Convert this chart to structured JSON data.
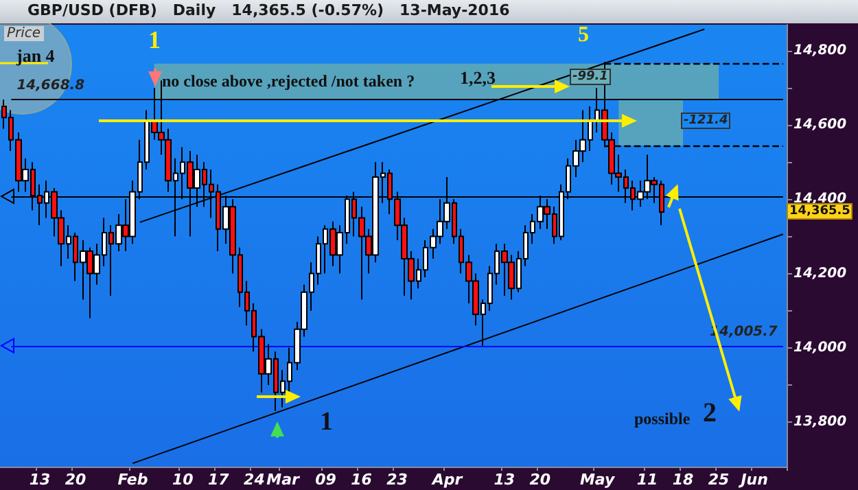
{
  "chart_data": {
    "type": "candlestick",
    "title": "GBP/USD (DFB)   Daily   14,365.5 (-0.57%)   13-May-2016",
    "categories": [
      null,
      null,
      null,
      null,
      null,
      "13",
      null,
      null,
      null,
      null,
      "20",
      null,
      null,
      null,
      null,
      null,
      null,
      null,
      "Feb",
      null,
      null,
      null,
      null,
      null,
      null,
      "10",
      null,
      null,
      null,
      null,
      "17",
      null,
      null,
      null,
      null,
      "24",
      null,
      null,
      null,
      "Mar",
      null,
      null,
      null,
      null,
      null,
      "09",
      null,
      null,
      null,
      null,
      "16",
      null,
      null,
      null,
      null,
      "23",
      null,
      null,
      null,
      null,
      null,
      null,
      "Apr",
      null,
      null,
      null,
      null,
      null,
      null,
      null,
      "13",
      null,
      null,
      null,
      null,
      "20",
      null,
      null,
      null,
      null,
      null,
      null,
      null,
      "May",
      null,
      null,
      null,
      null,
      null,
      null,
      "11",
      null,
      null,
      null,
      null,
      "18",
      null,
      null,
      null,
      null,
      "25",
      null,
      null,
      null,
      null,
      "Jun",
      null,
      null,
      null,
      null
    ],
    "ohlc": [
      [
        14650,
        14668.8,
        14590,
        14620
      ],
      [
        14620,
        14640,
        14530,
        14560
      ],
      [
        14560,
        14580,
        14420,
        14450
      ],
      [
        14450,
        14510,
        14420,
        14480
      ],
      [
        14480,
        14500,
        14370,
        14410
      ],
      [
        14410,
        14440,
        14330,
        14390
      ],
      [
        14390,
        14450,
        14350,
        14420
      ],
      [
        14420,
        14430,
        14300,
        14350
      ],
      [
        14350,
        14370,
        14220,
        14280
      ],
      [
        14280,
        14330,
        14240,
        14300
      ],
      [
        14300,
        14310,
        14180,
        14230
      ],
      [
        14230,
        14290,
        14130,
        14260
      ],
      [
        14260,
        14270,
        14080,
        14200
      ],
      [
        14200,
        14280,
        14170,
        14250
      ],
      [
        14250,
        14350,
        14220,
        14310
      ],
      [
        14310,
        14330,
        14140,
        14280
      ],
      [
        14280,
        14360,
        14260,
        14330
      ],
      [
        14330,
        14400,
        14260,
        14300
      ],
      [
        14300,
        14450,
        14280,
        14420
      ],
      [
        14420,
        14560,
        14400,
        14500
      ],
      [
        14500,
        14640,
        14480,
        14610
      ],
      [
        14610,
        14700,
        14560,
        14580
      ],
      [
        14580,
        14720,
        14520,
        14560
      ],
      [
        14560,
        14590,
        14420,
        14450
      ],
      [
        14450,
        14510,
        14300,
        14470
      ],
      [
        14470,
        14540,
        14400,
        14500
      ],
      [
        14500,
        14530,
        14300,
        14430
      ],
      [
        14430,
        14520,
        14380,
        14480
      ],
      [
        14480,
        14500,
        14380,
        14440
      ],
      [
        14440,
        14480,
        14350,
        14420
      ],
      [
        14420,
        14440,
        14260,
        14320
      ],
      [
        14320,
        14410,
        14280,
        14380
      ],
      [
        14380,
        14400,
        14200,
        14250
      ],
      [
        14250,
        14270,
        14110,
        14150
      ],
      [
        14150,
        14180,
        14060,
        14100
      ],
      [
        14100,
        14120,
        13990,
        14030
      ],
      [
        14030,
        14050,
        13880,
        13930
      ],
      [
        13930,
        14010,
        13900,
        13970
      ],
      [
        13970,
        13990,
        13830,
        13880
      ],
      [
        13880,
        13940,
        13840,
        13910
      ],
      [
        13910,
        14000,
        13880,
        13960
      ],
      [
        13960,
        14070,
        13940,
        14050
      ],
      [
        14050,
        14170,
        14030,
        14150
      ],
      [
        14150,
        14230,
        14100,
        14200
      ],
      [
        14200,
        14300,
        14170,
        14280
      ],
      [
        14280,
        14330,
        14200,
        14320
      ],
      [
        14320,
        14340,
        14220,
        14250
      ],
      [
        14250,
        14330,
        14200,
        14310
      ],
      [
        14310,
        14410,
        14280,
        14400
      ],
      [
        14400,
        14420,
        14300,
        14350
      ],
      [
        14350,
        14380,
        14130,
        14300
      ],
      [
        14300,
        14320,
        14200,
        14250
      ],
      [
        14250,
        14500,
        14230,
        14460
      ],
      [
        14460,
        14500,
        14390,
        14470
      ],
      [
        14470,
        14480,
        14360,
        14400
      ],
      [
        14400,
        14420,
        14290,
        14330
      ],
      [
        14330,
        14350,
        14140,
        14240
      ],
      [
        14240,
        14260,
        14130,
        14180
      ],
      [
        14180,
        14240,
        14160,
        14210
      ],
      [
        14210,
        14290,
        14190,
        14270
      ],
      [
        14270,
        14320,
        14240,
        14300
      ],
      [
        14300,
        14400,
        14280,
        14340
      ],
      [
        14340,
        14460,
        14320,
        14390
      ],
      [
        14390,
        14400,
        14280,
        14300
      ],
      [
        14300,
        14320,
        14200,
        14230
      ],
      [
        14230,
        14250,
        14120,
        14180
      ],
      [
        14180,
        14200,
        14060,
        14090
      ],
      [
        14090,
        14130,
        14005.7,
        14120
      ],
      [
        14120,
        14220,
        14100,
        14200
      ],
      [
        14200,
        14280,
        14170,
        14260
      ],
      [
        14260,
        14280,
        14140,
        14230
      ],
      [
        14230,
        14250,
        14130,
        14160
      ],
      [
        14160,
        14260,
        14150,
        14240
      ],
      [
        14240,
        14330,
        14220,
        14310
      ],
      [
        14310,
        14360,
        14280,
        14340
      ],
      [
        14340,
        14410,
        14320,
        14380
      ],
      [
        14380,
        14400,
        14320,
        14360
      ],
      [
        14360,
        14380,
        14280,
        14300
      ],
      [
        14300,
        14440,
        14290,
        14420
      ],
      [
        14420,
        14510,
        14400,
        14490
      ],
      [
        14490,
        14560,
        14460,
        14530
      ],
      [
        14530,
        14640,
        14500,
        14560
      ],
      [
        14560,
        14650,
        14530,
        14610
      ],
      [
        14610,
        14700,
        14580,
        14640
      ],
      [
        14640,
        14770,
        14540,
        14560
      ],
      [
        14560,
        14580,
        14440,
        14470
      ],
      [
        14470,
        14520,
        14420,
        14460
      ],
      [
        14460,
        14480,
        14390,
        14430
      ],
      [
        14430,
        14450,
        14370,
        14400
      ],
      [
        14400,
        14450,
        14380,
        14420
      ],
      [
        14420,
        14520,
        14400,
        14450
      ],
      [
        14450,
        14460,
        14390,
        14440
      ],
      [
        14440,
        14450,
        14330,
        14365.5
      ],
      null,
      null,
      null,
      null,
      null,
      null,
      null,
      null,
      null,
      null,
      null,
      null,
      null,
      null,
      null,
      null,
      null
    ],
    "series": [
      {
        "type": "line",
        "color": "#000000",
        "values": [
          null,
          null,
          null,
          null,
          null,
          null,
          null,
          null,
          null,
          null,
          null,
          null,
          null,
          null,
          null,
          null,
          null,
          null,
          null,
          14338,
          null,
          null,
          null,
          null,
          null,
          null,
          null,
          null,
          null,
          null,
          null,
          null,
          null,
          null,
          null,
          null,
          null,
          null,
          null,
          null,
          null,
          null,
          null,
          null,
          null,
          null,
          null,
          null,
          null,
          null,
          null,
          null,
          null,
          null,
          null,
          null,
          null,
          null,
          null,
          null,
          null,
          null,
          null,
          null,
          null,
          null,
          null,
          null,
          null,
          null,
          null,
          null,
          null,
          null,
          null,
          null,
          null,
          null,
          null,
          null,
          null,
          null,
          null,
          null,
          null,
          null,
          null,
          null,
          null,
          null,
          null,
          null,
          null,
          null,
          null,
          null,
          null,
          null,
          14858,
          null,
          null,
          null,
          null,
          null,
          null,
          null,
          null,
          null,
          null,
          null
        ]
      },
      {
        "type": "line",
        "color": "#000000",
        "values": [
          null,
          null,
          null,
          null,
          null,
          null,
          null,
          null,
          null,
          null,
          null,
          null,
          null,
          null,
          null,
          null,
          null,
          null,
          13689,
          null,
          null,
          null,
          null,
          null,
          null,
          null,
          null,
          null,
          null,
          null,
          null,
          null,
          null,
          null,
          null,
          null,
          null,
          null,
          null,
          null,
          null,
          null,
          null,
          null,
          null,
          null,
          null,
          null,
          null,
          null,
          null,
          null,
          null,
          null,
          null,
          null,
          null,
          null,
          null,
          null,
          null,
          null,
          null,
          null,
          null,
          null,
          null,
          null,
          null,
          null,
          null,
          null,
          null,
          null,
          null,
          null,
          null,
          null,
          null,
          null,
          null,
          null,
          null,
          null,
          null,
          null,
          null,
          null,
          null,
          null,
          null,
          null,
          null,
          null,
          null,
          null,
          null,
          null,
          null,
          null,
          null,
          null,
          null,
          null,
          null,
          null,
          null,
          null,
          null,
          14306
        ]
      }
    ],
    "ylim": [
      13680,
      14870
    ],
    "yticks": [
      {
        "value": 13800,
        "label": "13,800"
      },
      {
        "value": 13900,
        "label": null
      },
      {
        "value": 14000,
        "label": "14,000"
      },
      {
        "value": 14100,
        "label": null
      },
      {
        "value": 14200,
        "label": "14,200"
      },
      {
        "value": 14300,
        "label": null
      },
      {
        "value": 14400,
        "label": "14,400"
      },
      {
        "value": 14500,
        "label": null
      },
      {
        "value": 14600,
        "label": "14,600"
      },
      {
        "value": 14700,
        "label": null
      },
      {
        "value": 14800,
        "label": "14,800"
      }
    ],
    "ref_lines": [
      {
        "axis": "y",
        "value": 14668.8,
        "label": "14,668.8",
        "color": "#000000"
      },
      {
        "axis": "y",
        "value": 14408,
        "color": "#000000"
      },
      {
        "axis": "y",
        "value": 14005.7,
        "label": "14,005.7",
        "color": "#0000ff"
      },
      {
        "axis": "y",
        "value": 14765,
        "color": "#000000",
        "line_style": "dashed"
      },
      {
        "axis": "y",
        "value": 14545,
        "color": "#000000",
        "line_style": "dashed"
      }
    ],
    "bands": [
      {
        "axis": "y",
        "from": 14668.8,
        "to": 14765,
        "color": "#63a9b4"
      },
      {
        "axis": "y",
        "from": 14545,
        "to": 14668.8,
        "color": "#63a9b4"
      }
    ],
    "annotations": [
      "Price",
      "jan 4",
      "1",
      "5",
      "no close above ,rejected /not taken ?",
      "1,2,3",
      {
        "text": "-99.1",
        "y": 14725
      },
      {
        "text": "-121.4",
        "y": 14607
      },
      "1",
      "possible",
      "2",
      "14,365.5"
    ],
    "grid": false
  }
}
